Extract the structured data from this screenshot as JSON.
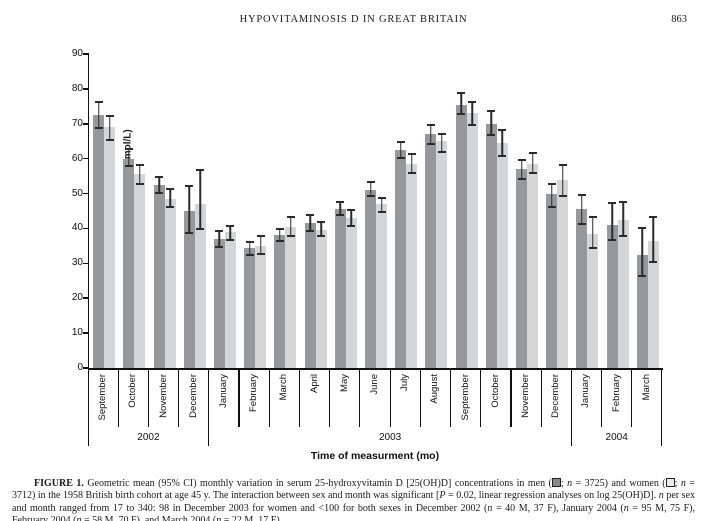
{
  "header": {
    "running_title": "HYPOVITAMINOSIS D IN GREAT BRITAIN",
    "page_number": "863"
  },
  "chart_data": {
    "type": "bar",
    "title": "",
    "ylabel": "Serum 25-hydroxyvitamin D (nmol/L)",
    "xlabel": "Time of measurment (mo)",
    "ylim": [
      0,
      90
    ],
    "ytick_interval": 10,
    "grid": false,
    "legend_position": "in-caption",
    "year_groups": [
      {
        "year": "2002",
        "months": [
          "September",
          "October",
          "November",
          "December"
        ]
      },
      {
        "year": "2003",
        "months": [
          "January",
          "February",
          "March",
          "April",
          "May",
          "June",
          "July",
          "August",
          "September",
          "October",
          "November",
          "December"
        ]
      },
      {
        "year": "2004",
        "months": [
          "January",
          "February",
          "March"
        ]
      }
    ],
    "categories": [
      "Sep 2002",
      "Oct 2002",
      "Nov 2002",
      "Dec 2002",
      "Jan 2003",
      "Feb 2003",
      "Mar 2003",
      "Apr 2003",
      "May 2003",
      "Jun 2003",
      "Jul 2003",
      "Aug 2003",
      "Sep 2003",
      "Oct 2003",
      "Nov 2003",
      "Dec 2003",
      "Jan 2004",
      "Feb 2004",
      "Mar 2004"
    ],
    "series": [
      {
        "name": "men",
        "color": "#96989b",
        "values": [
          72.5,
          60,
          52.5,
          45,
          37,
          34.5,
          38,
          41.5,
          45.5,
          51,
          62.5,
          67,
          75.5,
          70,
          57,
          50,
          45.5,
          41,
          32.5
        ],
        "ci_low": [
          68.5,
          57.5,
          50,
          38.5,
          34.5,
          32,
          36,
          39,
          43.5,
          49,
          60,
          64,
          72.5,
          66.5,
          54,
          46,
          41,
          36.5,
          26
        ],
        "ci_high": [
          76.5,
          63,
          55,
          52.5,
          39.5,
          36.5,
          40,
          44,
          48,
          53.5,
          65,
          70,
          79,
          74,
          60,
          53,
          50,
          47.5,
          40.5
        ]
      },
      {
        "name": "women",
        "color": "#d3d5d7",
        "values": [
          69,
          55.5,
          48.5,
          47,
          39,
          35,
          40.5,
          39.5,
          43,
          47,
          58.5,
          65,
          73,
          64.5,
          58.5,
          54,
          38.5,
          42.5,
          36.5
        ],
        "ci_low": [
          65,
          52.5,
          46,
          39.5,
          36.5,
          32.5,
          37.5,
          37.5,
          40.5,
          44.5,
          55.5,
          61.5,
          69.5,
          60.5,
          55.5,
          49,
          34,
          37.5,
          30
        ],
        "ci_high": [
          72.5,
          58.5,
          51.5,
          57,
          41,
          38,
          43.5,
          42,
          45.5,
          49,
          61.5,
          67.5,
          76.5,
          68.5,
          62,
          58.5,
          43.5,
          48,
          43.5
        ]
      }
    ]
  },
  "caption": {
    "segments": [
      {
        "t": "FIGURE 1. ",
        "s": "b"
      },
      {
        "t": "Geometric mean (95% CI) monthly variation in serum 25-hydroxyvitamin D [25(OH)D] concentrations in men (",
        "s": ""
      },
      {
        "t": "",
        "s": "swm"
      },
      {
        "t": "; ",
        "s": ""
      },
      {
        "t": "n",
        "s": "i"
      },
      {
        "t": " = 3725) and women (",
        "s": ""
      },
      {
        "t": "",
        "s": "sww"
      },
      {
        "t": "; ",
        "s": ""
      },
      {
        "t": "n",
        "s": "i"
      },
      {
        "t": " = 3712) in the 1958 British birth cohort at age 45 y. The interaction between sex and month was significant [",
        "s": ""
      },
      {
        "t": "P",
        "s": "i"
      },
      {
        "t": " = 0.02, linear regression analyses on log 25(OH)D]. ",
        "s": ""
      },
      {
        "t": "n",
        "s": "i"
      },
      {
        "t": " per sex and month ranged from 17 to 340: 98 in December 2003 for women and <100 for both sexes in December 2002 (",
        "s": ""
      },
      {
        "t": "n",
        "s": "i"
      },
      {
        "t": " = 40 M, 37 F), January 2004 (",
        "s": ""
      },
      {
        "t": "n",
        "s": "i"
      },
      {
        "t": " = 95 M, 75 F), February 2004 (",
        "s": ""
      },
      {
        "t": "n",
        "s": "i"
      },
      {
        "t": " = 58 M, 70 F), and March 2004 (",
        "s": ""
      },
      {
        "t": "n",
        "s": "i"
      },
      {
        "t": " = 22 M, 17 F).",
        "s": ""
      }
    ]
  }
}
